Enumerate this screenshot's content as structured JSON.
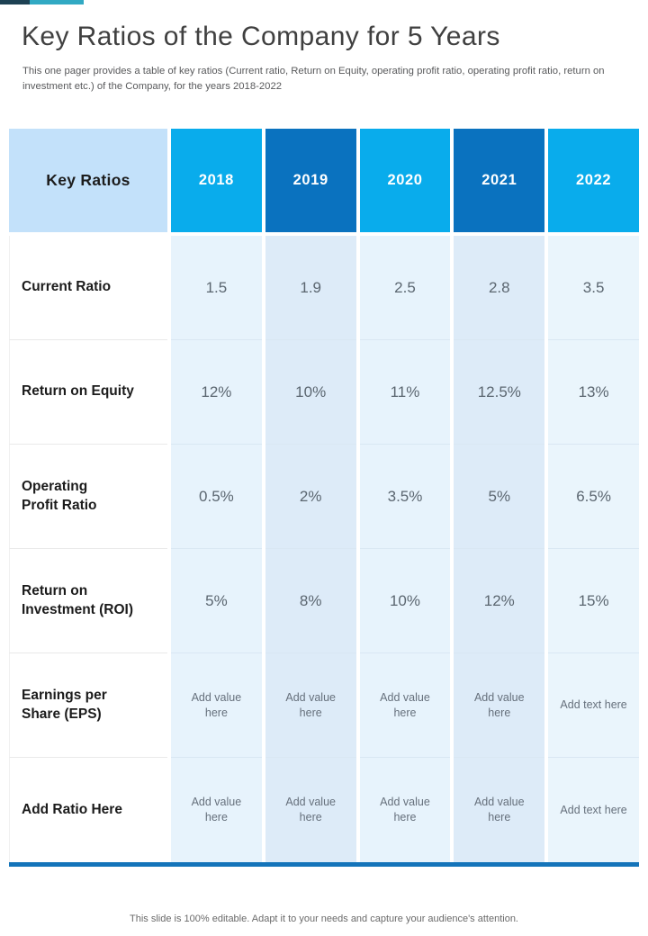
{
  "header": {
    "title": "Key Ratios of the Company for 5 Years",
    "subtitle": "This one pager provides a table of key ratios (Current ratio, Return on Equity, operating profit ratio, operating profit ratio, return on investment etc.) of the Company, for the years 2018-2022"
  },
  "table": {
    "corner_label": "Key Ratios",
    "years": [
      "2018",
      "2019",
      "2020",
      "2021",
      "2022"
    ],
    "rows": [
      {
        "label": "Current Ratio",
        "label_lines": [
          "Current Ratio"
        ],
        "values": [
          "1.5",
          "1.9",
          "2.5",
          "2.8",
          "3.5"
        ]
      },
      {
        "label": "Return on Equity",
        "label_lines": [
          "Return on Equity"
        ],
        "values": [
          "12%",
          "10%",
          "11%",
          "12.5%",
          "13%"
        ]
      },
      {
        "label": "Operating Profit Ratio",
        "label_lines": [
          "Operating",
          "Profit Ratio"
        ],
        "values": [
          "0.5%",
          "2%",
          "3.5%",
          "5%",
          "6.5%"
        ]
      },
      {
        "label": "Return on Investment (ROI)",
        "label_lines": [
          "Return on",
          "Investment (ROI)"
        ],
        "values": [
          "5%",
          "8%",
          "10%",
          "12%",
          "15%"
        ]
      },
      {
        "label": "Earnings per Share (EPS)",
        "label_lines": [
          "Earnings per",
          "Share (EPS)"
        ],
        "values": [
          "Add value here",
          "Add value here",
          "Add value here",
          "Add value here",
          "Add text here"
        ]
      },
      {
        "label": "Add Ratio Here",
        "label_lines": [
          "Add Ratio Here"
        ],
        "values": [
          "Add value here",
          "Add value here",
          "Add value here",
          "Add value here",
          "Add text here"
        ]
      }
    ]
  },
  "footer": {
    "note": "This slide is 100% editable. Adapt it to your needs and capture your audience's attention."
  },
  "colors": {
    "accent_dark": "#1d4153",
    "accent_teal": "#31a9c3",
    "header_year_bright": "#09acec",
    "header_year_deep": "#0a72bf",
    "corner_header_bg": "#c3e1fa",
    "cell_light": "#e7f3fc",
    "cell_alt": "#ddebf8",
    "bottom_bar": "#1474ba"
  }
}
